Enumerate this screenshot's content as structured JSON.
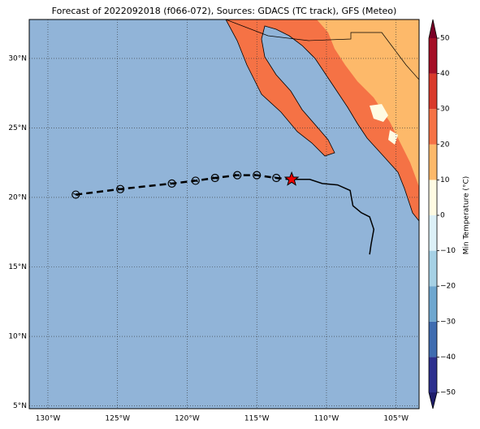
{
  "chart_data": {
    "type": "map",
    "title": "Forecast of 2022092018 (f066-072), Sources: GDACS (TC track), GFS (Meteo)",
    "xlim": [
      -131.34,
      -103.35
    ],
    "ylim": [
      4.8,
      32.8
    ],
    "xticks": [
      {
        "value": -130,
        "label": "130°W"
      },
      {
        "value": -125,
        "label": "125°W"
      },
      {
        "value": -120,
        "label": "120°W"
      },
      {
        "value": -115,
        "label": "115°W"
      },
      {
        "value": -110,
        "label": "110°W"
      },
      {
        "value": -105,
        "label": "105°W"
      }
    ],
    "yticks": [
      {
        "value": 5,
        "label": "5°N"
      },
      {
        "value": 10,
        "label": "10°N"
      },
      {
        "value": 15,
        "label": "15°N"
      },
      {
        "value": 20,
        "label": "20°N"
      },
      {
        "value": 25,
        "label": "25°N"
      },
      {
        "value": 30,
        "label": "30°N"
      }
    ],
    "grid": true,
    "ocean_color": "#91b4d8",
    "colorbar": {
      "label": "Min Temperature (°C)",
      "levels": [
        -50,
        -40,
        -30,
        -20,
        -10,
        0,
        10,
        20,
        30,
        40,
        50
      ],
      "colors": [
        "#2c2f8d",
        "#3f6cb0",
        "#6ea7cf",
        "#a6d1e5",
        "#dcf0f7",
        "#fffbe3",
        "#fdb96a",
        "#f57245",
        "#d93a2b",
        "#a50f26"
      ],
      "under_color": "#1f1d6b",
      "over_color": "#7a0026",
      "ticks": [
        {
          "value": -50,
          "label": "−50"
        },
        {
          "value": -40,
          "label": "−40"
        },
        {
          "value": -30,
          "label": "−30"
        },
        {
          "value": -20,
          "label": "−20"
        },
        {
          "value": -10,
          "label": "−10"
        },
        0,
        10,
        20,
        30,
        40,
        50
      ]
    },
    "forecast_track": {
      "lon": [
        -128.0,
        -124.8,
        -121.1,
        -119.4,
        -118.0,
        -116.4,
        -115.0,
        -113.6
      ],
      "lat": [
        20.2,
        20.6,
        21.0,
        21.2,
        21.4,
        21.6,
        21.6,
        21.4
      ]
    },
    "current_position": {
      "lon": -112.5,
      "lat": 21.3
    },
    "observed_track": {
      "lon": [
        -112.5,
        -111.2,
        -110.3,
        -109.2,
        -108.3,
        -108.1,
        -107.5,
        -106.9,
        -106.6,
        -106.8,
        -106.9
      ],
      "lat": [
        21.3,
        21.3,
        21.0,
        20.9,
        20.5,
        19.4,
        18.9,
        18.6,
        17.7,
        16.6,
        15.9
      ]
    }
  }
}
